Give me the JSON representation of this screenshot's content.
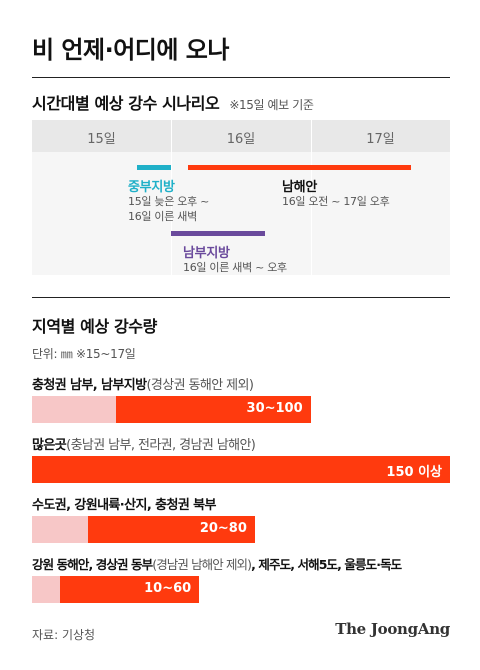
{
  "title": "비 언제·어디에 오나",
  "timeline": {
    "heading": "시간대별 예상 강수 시나리오",
    "note": "※15일 예보 기준",
    "days": [
      "15일",
      "16일",
      "17일"
    ],
    "scenarios": [
      {
        "region": "중부지방",
        "period": [
          "15일 늦은 오후 ~",
          "16일 이른 새벽"
        ],
        "color": "#1fb0c8",
        "start_day": 15.75,
        "end_day": 16.0
      },
      {
        "region": "남부지방",
        "period": [
          "16일 이른 새벽 ~ 오후"
        ],
        "color": "#6a4a9c",
        "start_day": 16.0,
        "end_day": 16.67
      },
      {
        "region": "남해안",
        "period": [
          "16일 오전 ~ 17일 오후"
        ],
        "color": "#ff3a0e",
        "start_day": 16.12,
        "end_day": 17.72
      }
    ]
  },
  "chart": {
    "heading": "지역별 예상 강수량",
    "unit_note": "단위: ㎜  ※15~17일"
  },
  "chart_data": {
    "type": "bar",
    "title": "지역별 예상 강수량",
    "unit": "㎜",
    "period": "15~17일",
    "xlim": [
      0,
      150
    ],
    "categories": [
      {
        "name": "충청권 남부, 남부지방",
        "note": "(경상권 동해안 제외)"
      },
      {
        "name": "많은곳",
        "note": "(충남권 남부, 전라권, 경남권 남해안)"
      },
      {
        "name": "수도권, 강원내륙·산지, 충청권 북부",
        "note": ""
      },
      {
        "name": "강원 동해안, 경상권 동부",
        "note": "(경남권 남해안 제외)",
        "tail": ", 제주도, 서해5도, 울릉도·독도"
      }
    ],
    "series": [
      {
        "min": 30,
        "max": 100,
        "label": "30~100"
      },
      {
        "min": 150,
        "max": 150,
        "label": "150 이상"
      },
      {
        "min": 20,
        "max": 80,
        "label": "20~80"
      },
      {
        "min": 10,
        "max": 60,
        "label": "10~60"
      }
    ],
    "colors": {
      "min": "#f7c7c7",
      "range": "#ff3a0e"
    }
  },
  "footer": {
    "source": "자료: 기상청",
    "logo": "The JoongAng"
  }
}
